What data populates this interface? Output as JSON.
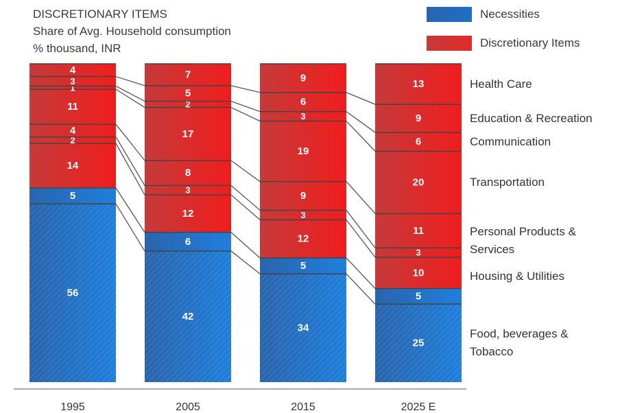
{
  "chart_data": {
    "type": "bar",
    "stacked": true,
    "title_lines": [
      "DISCRETIONARY ITEMS",
      "Share of Avg. Household consumption",
      "% thousand, INR"
    ],
    "categories": [
      "1995",
      "2005",
      "2015",
      "2025 E"
    ],
    "segments": [
      {
        "name": "Food, beverages & Tobacco",
        "group": "Necessities",
        "values": [
          56,
          42,
          34,
          25
        ]
      },
      {
        "name": "Housing & Utilities",
        "group": "Necessities",
        "values": [
          5,
          6,
          5,
          5
        ]
      },
      {
        "name": "Housing & Utilities",
        "group": "Discretionary Items",
        "values": [
          14,
          12,
          12,
          10
        ]
      },
      {
        "name": "Personal Products & Services",
        "group": "Discretionary Items",
        "values": [
          2,
          3,
          3,
          3
        ]
      },
      {
        "name": "Personal Products & Services",
        "group": "Discretionary Items",
        "values": [
          4,
          8,
          9,
          11
        ]
      },
      {
        "name": "Transportation",
        "group": "Discretionary Items",
        "values": [
          11,
          17,
          19,
          20
        ]
      },
      {
        "name": "Communication",
        "group": "Discretionary Items",
        "values": [
          1,
          2,
          3,
          6
        ]
      },
      {
        "name": "Education & Recreation",
        "group": "Discretionary Items",
        "values": [
          3,
          5,
          6,
          9
        ]
      },
      {
        "name": "Health Care",
        "group": "Discretionary Items",
        "values": [
          4,
          7,
          9,
          13
        ]
      }
    ],
    "legend": [
      {
        "label": "Necessities",
        "color": "#1f6fc5"
      },
      {
        "label": "Discretionary Items",
        "color": "#e32b2b"
      }
    ],
    "legend_position": "top-right",
    "right_labels": [
      {
        "text": "Health Care",
        "segment": 8
      },
      {
        "text": "Education & Recreation",
        "segment": 7
      },
      {
        "text": "Communication",
        "segment": 6
      },
      {
        "text": "Transportation",
        "segment": 5
      },
      {
        "text": "Personal Products &\nServices",
        "segment": 4
      },
      {
        "text": "Housing & Utilities",
        "segment": 2
      },
      {
        "text": "Food, beverages &\nTobacco",
        "segment": 0
      }
    ],
    "colors": {
      "necessities": "#1f6fc5",
      "discretionary": "#e32b2b",
      "divider": "#444444"
    }
  }
}
